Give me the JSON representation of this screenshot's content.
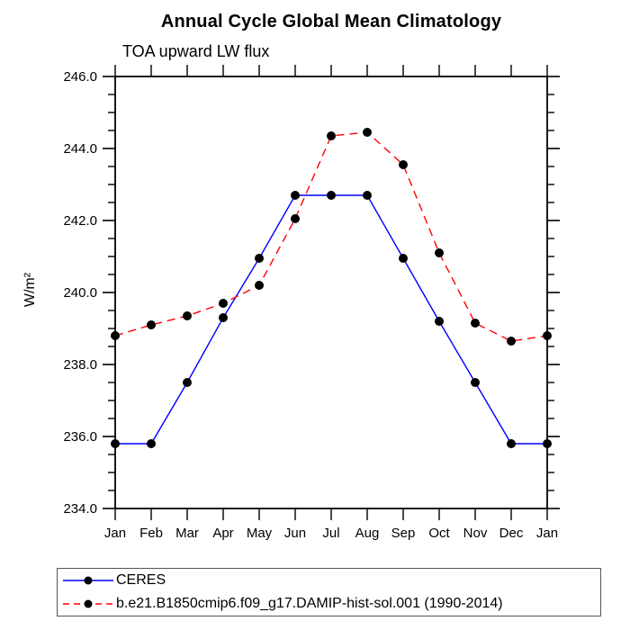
{
  "page": {
    "background": "#ffffff"
  },
  "chart_data": {
    "type": "line",
    "title": "Annual Cycle Global Mean Climatology",
    "subtitle": "TOA upward LW flux",
    "ylabel": "W/m²",
    "xlabel": "",
    "categories": [
      "Jan",
      "Feb",
      "Mar",
      "Apr",
      "May",
      "Jun",
      "Jul",
      "Aug",
      "Sep",
      "Oct",
      "Nov",
      "Dec",
      "Jan"
    ],
    "ylim": [
      234.0,
      246.0
    ],
    "y_major_step": 2.0,
    "y_minor_step": 0.5,
    "y_tick_labels": [
      "246.0",
      "244.0",
      "242.0",
      "240.0",
      "238.0",
      "236.0",
      "234.0"
    ],
    "grid": false,
    "legend_position": "bottom-left",
    "axis_color": "#000000",
    "marker": {
      "shape": "filled-circle",
      "color": "#000000",
      "radius": 5
    },
    "series": [
      {
        "name": "CERES",
        "color": "#0000ff",
        "line_style": "solid",
        "values": [
          235.8,
          235.8,
          237.5,
          239.3,
          240.95,
          242.7,
          242.7,
          242.7,
          240.95,
          239.2,
          237.5,
          235.8,
          235.8
        ]
      },
      {
        "name": "b.e21.B1850cmip6.f09_g17.DAMIP-hist-sol.001 (1990-2014)",
        "color": "#ff0000",
        "line_style": "dashed",
        "values": [
          238.8,
          239.1,
          239.35,
          239.7,
          240.2,
          242.05,
          244.35,
          244.45,
          243.55,
          241.1,
          239.15,
          238.65,
          238.8
        ]
      }
    ]
  }
}
